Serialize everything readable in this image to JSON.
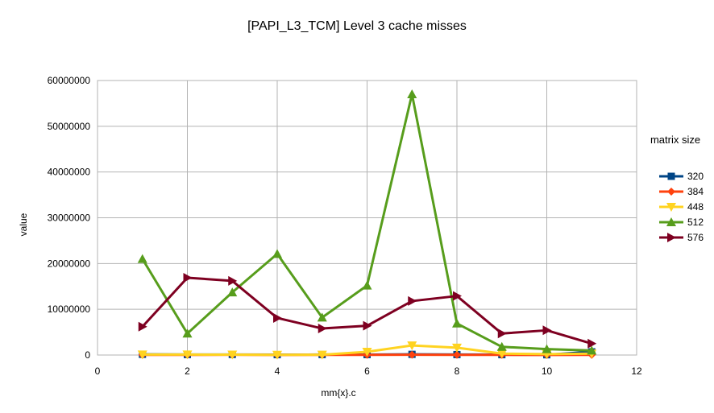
{
  "chart_data": {
    "type": "line",
    "title": "[PAPI_L3_TCM] Level 3 cache misses",
    "xlabel": "mm{x}.c",
    "ylabel": "value",
    "xlim": [
      0,
      12
    ],
    "ylim": [
      0,
      60000000
    ],
    "x_ticks": [
      "0",
      "2",
      "4",
      "6",
      "8",
      "10",
      "12"
    ],
    "y_ticks": [
      "0",
      "10000000",
      "20000000",
      "30000000",
      "40000000",
      "50000000",
      "60000000"
    ],
    "grid": true,
    "legend_title": "matrix size",
    "legend_position": "right",
    "x": [
      1,
      2,
      3,
      4,
      5,
      6,
      7,
      8,
      9,
      10,
      11
    ],
    "series": [
      {
        "name": "320",
        "color": "#004586",
        "marker": "square",
        "values": [
          150000,
          100000,
          120000,
          80000,
          100000,
          90000,
          150000,
          100000,
          80000,
          60000,
          700000
        ]
      },
      {
        "name": "384",
        "color": "#ff420e",
        "marker": "diamond",
        "values": [
          50000,
          40000,
          60000,
          30000,
          40000,
          50000,
          60000,
          50000,
          40000,
          30000,
          40000
        ]
      },
      {
        "name": "448",
        "color": "#ffd320",
        "marker": "triangle-down",
        "values": [
          100000,
          100000,
          80000,
          50000,
          60000,
          700000,
          2100000,
          1600000,
          300000,
          200000,
          300000
        ]
      },
      {
        "name": "512",
        "color": "#579d1c",
        "marker": "triangle-up",
        "values": [
          21000000,
          4700000,
          13700000,
          22100000,
          8200000,
          15200000,
          57000000,
          6900000,
          1800000,
          1300000,
          1000000
        ]
      },
      {
        "name": "576",
        "color": "#7e0021",
        "marker": "triangle-right",
        "values": [
          6200000,
          16900000,
          16200000,
          8100000,
          5800000,
          6400000,
          11800000,
          12900000,
          4700000,
          5400000,
          2500000
        ]
      }
    ]
  }
}
